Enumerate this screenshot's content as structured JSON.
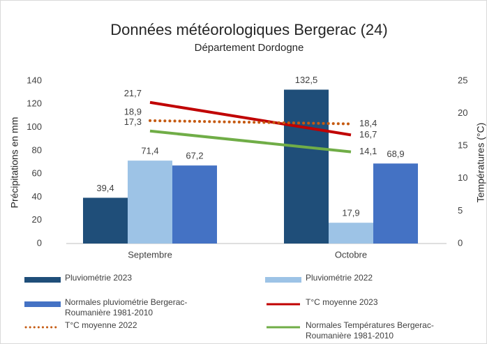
{
  "chart_data": {
    "type": "bar",
    "title": "Données météorologiques Bergerac (24)",
    "subtitle": "Département Dordogne",
    "ylabel": "Précipitations en mm",
    "y2label": "Températures (°C)",
    "categories": [
      "Septembre",
      "Octobre"
    ],
    "ylim": [
      0,
      140
    ],
    "yticks": [
      0,
      20,
      40,
      60,
      80,
      100,
      120,
      140
    ],
    "y2lim": [
      0,
      25
    ],
    "y2ticks": [
      0,
      5,
      10,
      15,
      20,
      25
    ],
    "grid": false,
    "legend": "bottom",
    "series": [
      {
        "name": "Pluviométrie 2023",
        "type": "bar",
        "color": "#1f4e79",
        "values": [
          39.4,
          132.5
        ],
        "value_labels": [
          "39,4",
          "132,5"
        ]
      },
      {
        "name": "Pluviométrie 2022",
        "type": "bar",
        "color": "#9dc3e6",
        "values": [
          71.4,
          17.9
        ],
        "value_labels": [
          "71,4",
          "17,9"
        ]
      },
      {
        "name": "Normales pluviométrie Bergerac-Roumanière 1981-2010",
        "type": "bar",
        "color": "#4472c4",
        "values": [
          67.2,
          68.9
        ],
        "value_labels": [
          "67,2",
          "68,9"
        ]
      },
      {
        "name": "T°C moyenne 2023",
        "type": "line",
        "axis": "y2",
        "color": "#c00000",
        "values": [
          21.7,
          16.7
        ],
        "value_labels": [
          "21,7",
          "16,7"
        ]
      },
      {
        "name": "T°C moyenne 2022",
        "type": "line",
        "axis": "y2",
        "style": "dotted",
        "color": "#c55a11",
        "values": [
          18.9,
          18.4
        ],
        "value_labels": [
          "18,9",
          "18,4"
        ]
      },
      {
        "name": "Normales Températures Bergerac-Roumanière 1981-2010",
        "type": "line",
        "axis": "y2",
        "color": "#70ad47",
        "values": [
          17.3,
          14.1
        ],
        "value_labels": [
          "17,3",
          "14,1"
        ]
      }
    ]
  }
}
